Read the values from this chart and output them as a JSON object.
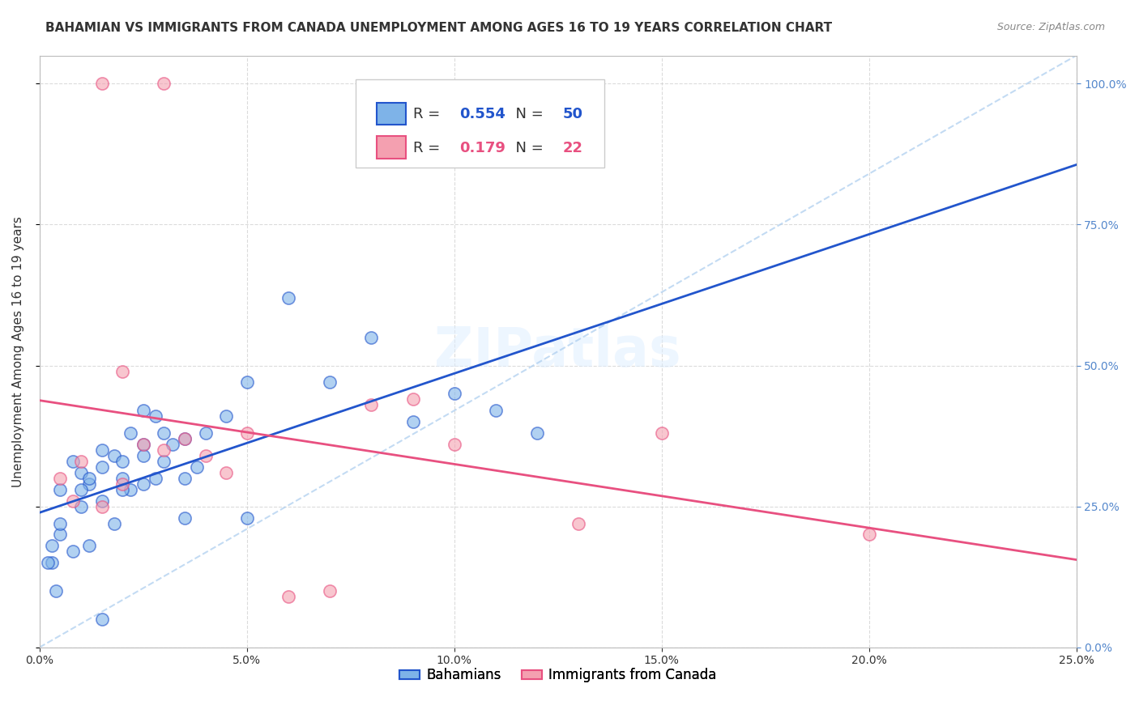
{
  "title": "BAHAMIAN VS IMMIGRANTS FROM CANADA UNEMPLOYMENT AMONG AGES 16 TO 19 YEARS CORRELATION CHART",
  "source": "Source: ZipAtlas.com",
  "xlabel_ticks": [
    "0.0%",
    "5.0%",
    "10.0%",
    "15.0%",
    "20.0%",
    "25.0%"
  ],
  "xlabel_vals": [
    0,
    5,
    10,
    15,
    20,
    25
  ],
  "ylabel_ticks": [
    "0.0%",
    "25.0%",
    "50.0%",
    "75.0%",
    "100.0%"
  ],
  "ylabel_vals": [
    0,
    25,
    50,
    75,
    100
  ],
  "xlim": [
    0,
    25
  ],
  "ylim": [
    0,
    105
  ],
  "blue_R": 0.554,
  "blue_N": 50,
  "pink_R": 0.179,
  "pink_N": 22,
  "blue_color": "#7EB3E8",
  "pink_color": "#F4A0B0",
  "blue_line_color": "#2255CC",
  "pink_line_color": "#E85080",
  "watermark": "ZIPatlas",
  "legend_label_blue": "Bahamians",
  "legend_label_pink": "Immigrants from Canada",
  "blue_x": [
    0.5,
    0.8,
    1.0,
    1.2,
    1.5,
    1.5,
    1.8,
    2.0,
    2.0,
    2.2,
    2.5,
    2.5,
    2.5,
    2.8,
    3.0,
    3.0,
    3.2,
    3.5,
    3.5,
    3.8,
    0.3,
    0.3,
    0.5,
    0.5,
    0.8,
    1.0,
    1.0,
    1.2,
    1.5,
    1.8,
    2.0,
    2.2,
    2.5,
    2.8,
    3.5,
    4.0,
    4.5,
    5.0,
    5.0,
    6.0,
    7.0,
    8.0,
    9.0,
    10.0,
    11.0,
    12.0,
    0.2,
    0.4,
    1.2,
    1.5
  ],
  "blue_y": [
    28,
    33,
    31,
    29,
    32,
    35,
    34,
    30,
    33,
    28,
    36,
    34,
    29,
    30,
    38,
    33,
    36,
    37,
    30,
    32,
    15,
    18,
    20,
    22,
    17,
    25,
    28,
    30,
    26,
    22,
    28,
    38,
    42,
    41,
    23,
    38,
    41,
    23,
    47,
    62,
    47,
    55,
    40,
    45,
    42,
    38,
    15,
    10,
    18,
    5
  ],
  "pink_x": [
    0.5,
    0.8,
    1.0,
    1.5,
    2.0,
    2.5,
    3.0,
    3.5,
    4.0,
    4.5,
    5.0,
    6.0,
    7.0,
    8.0,
    9.0,
    10.0,
    13.0,
    15.0,
    20.0,
    3.0,
    1.5,
    2.0
  ],
  "pink_y": [
    30,
    26,
    33,
    25,
    29,
    36,
    35,
    37,
    34,
    31,
    38,
    9,
    10,
    43,
    44,
    36,
    22,
    38,
    20,
    100,
    100,
    49
  ]
}
